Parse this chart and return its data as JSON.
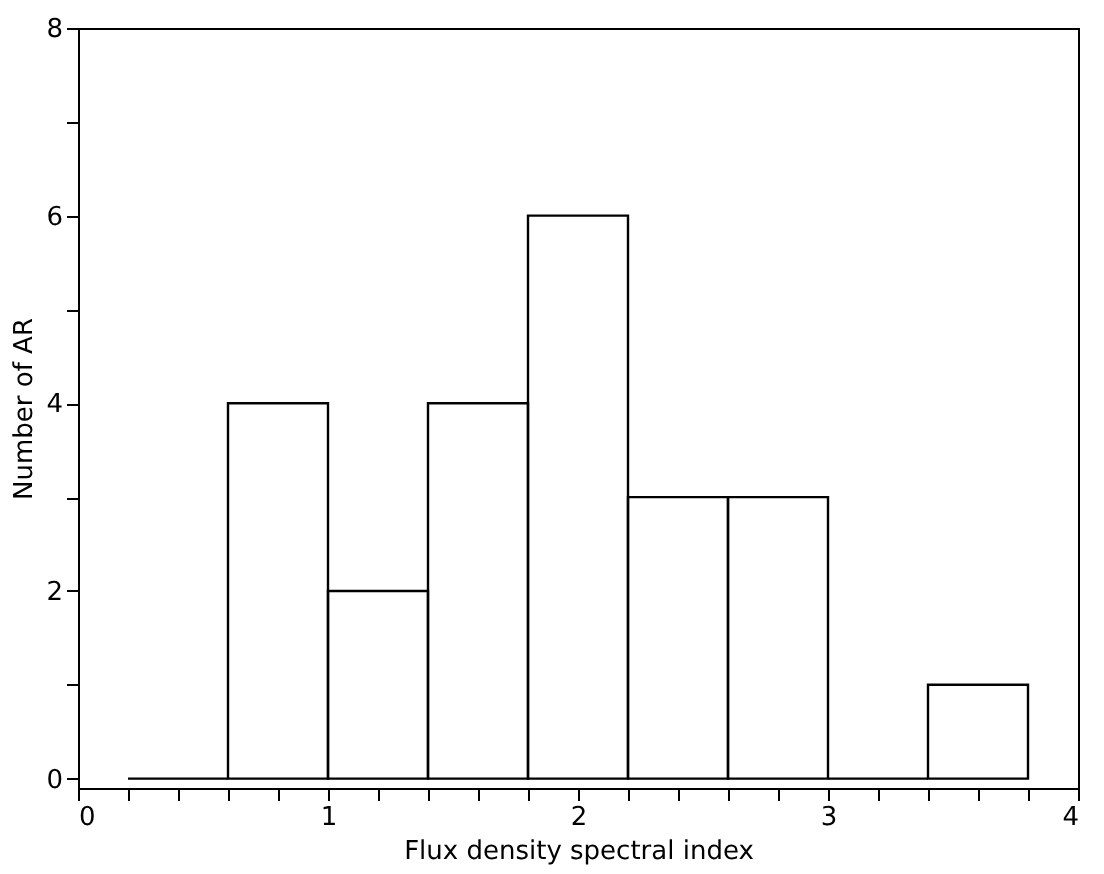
{
  "chart_data": {
    "type": "histogram",
    "xlabel": "Flux density spectral index",
    "ylabel": "Number of AR",
    "bins": [
      0.2,
      0.6,
      1.0,
      1.4,
      1.8,
      2.2,
      2.6,
      3.0,
      3.4,
      3.8
    ],
    "values": [
      0,
      4,
      2,
      4,
      6,
      3,
      3,
      0,
      1
    ],
    "color": "#000000",
    "xlim": [
      0,
      4
    ],
    "ylim": [
      -0.1,
      8
    ],
    "xticks": [
      0,
      {
        "value": 0.2,
        "label": null
      },
      {
        "value": 0.4,
        "label": null
      },
      {
        "value": 0.6,
        "label": null
      },
      {
        "value": 0.8,
        "label": null
      },
      1,
      {
        "value": 1.2,
        "label": null
      },
      {
        "value": 1.4,
        "label": null
      },
      {
        "value": 1.6,
        "label": null
      },
      {
        "value": 1.8,
        "label": null
      },
      2,
      {
        "value": 2.2,
        "label": null
      },
      {
        "value": 2.4,
        "label": null
      },
      {
        "value": 2.6,
        "label": null
      },
      {
        "value": 2.8,
        "label": null
      },
      3,
      {
        "value": 3.2,
        "label": null
      },
      {
        "value": 3.4,
        "label": null
      },
      {
        "value": 3.6,
        "label": null
      },
      {
        "value": 3.8,
        "label": null
      },
      4
    ],
    "yticks": [
      0,
      {
        "value": 1,
        "label": null
      },
      2,
      {
        "value": 3,
        "label": null
      },
      4,
      {
        "value": 5,
        "label": null
      },
      6,
      {
        "value": 7,
        "label": null
      },
      8
    ],
    "grid": false
  }
}
